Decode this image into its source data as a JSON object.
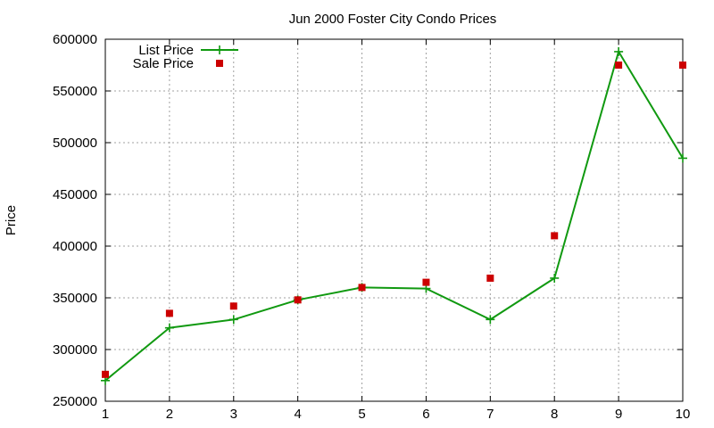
{
  "chart_data": {
    "type": "line",
    "title": "Jun 2000 Foster City Condo Prices",
    "xlabel": "",
    "ylabel": "Price",
    "xlim": [
      1,
      10
    ],
    "ylim": [
      250000,
      600000
    ],
    "x_ticks": [
      "1",
      "2",
      "3",
      "4",
      "5",
      "6",
      "7",
      "8",
      "9",
      "10"
    ],
    "y_ticks": [
      "250000",
      "300000",
      "350000",
      "400000",
      "450000",
      "500000",
      "550000",
      "600000"
    ],
    "grid": true,
    "legend_position": "top-left",
    "series": [
      {
        "name": "List Price",
        "style": "line+cross",
        "color": "#109910",
        "x": [
          1,
          2,
          3,
          4,
          5,
          6,
          7,
          8,
          9,
          10
        ],
        "y": [
          270000,
          321000,
          329000,
          348000,
          360000,
          359000,
          329000,
          369000,
          588000,
          485000
        ]
      },
      {
        "name": "Sale Price",
        "style": "square",
        "color": "#cc0000",
        "x": [
          1,
          2,
          3,
          4,
          5,
          6,
          7,
          8,
          9,
          10
        ],
        "y": [
          276000,
          335000,
          342000,
          348000,
          360000,
          365000,
          369000,
          410000,
          575000,
          575000
        ]
      }
    ]
  }
}
